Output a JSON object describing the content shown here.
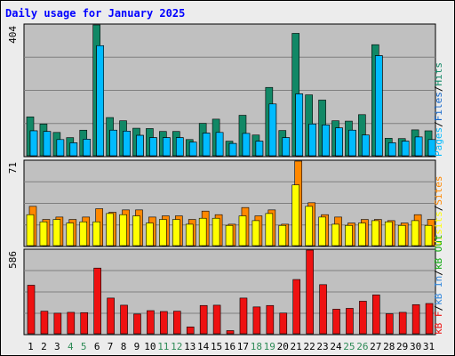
{
  "colors": {
    "frame_bg": "#ececec",
    "panel_bg": "#c0c0c0",
    "grid": "#7f7f7f",
    "title": "#0000ff",
    "pages": "#00bbff",
    "hits": "#118866",
    "files": "#1166cc",
    "visits": "#ffff00",
    "sites": "#ff8800",
    "kb": "#ee1111",
    "kb_in": "#3388dd",
    "kb_out": "#11aa11",
    "weekday": "#000000",
    "weekend": "#2e8b57"
  },
  "legend": {
    "top": [
      {
        "text": "Pages",
        "color": "#00bbff"
      },
      {
        "text": "/",
        "color": "#000000"
      },
      {
        "text": "Files",
        "color": "#1166cc"
      },
      {
        "text": "/",
        "color": "#000000"
      },
      {
        "text": "Hits",
        "color": "#118866"
      }
    ],
    "middle": [
      {
        "text": "Visits",
        "color": "#ffff00"
      },
      {
        "text": "/",
        "color": "#000000"
      },
      {
        "text": "Sites",
        "color": "#ff8800"
      }
    ],
    "bottom": [
      {
        "text": "kB F",
        "color": "#ee1111"
      },
      {
        "text": "/",
        "color": "#000000"
      },
      {
        "text": "kB In",
        "color": "#3388dd"
      },
      {
        "text": "/",
        "color": "#000000"
      },
      {
        "text": "kB Out",
        "color": "#11aa11"
      }
    ]
  },
  "chart_data": {
    "type": "bar",
    "title": "Daily usage for January 2025",
    "categories": [
      "1",
      "2",
      "3",
      "4",
      "5",
      "6",
      "7",
      "8",
      "9",
      "10",
      "11",
      "12",
      "13",
      "14",
      "15",
      "16",
      "17",
      "18",
      "19",
      "20",
      "21",
      "22",
      "23",
      "24",
      "25",
      "26",
      "27",
      "28",
      "29",
      "30",
      "31"
    ],
    "weekend_days": [
      "4",
      "5",
      "11",
      "12",
      "18",
      "19",
      "25",
      "26"
    ],
    "panels": [
      {
        "name": "hits-files-pages",
        "ymax_label": "404",
        "ylim": [
          0,
          404
        ],
        "gridlines": 3,
        "series": [
          {
            "name": "Hits",
            "color": "#118866",
            "values": [
              120,
              98,
              72,
              56,
              79,
              404,
              118,
              108,
              85,
              84,
              75,
              75,
              50,
              100,
              113,
              45,
              125,
              64,
              211,
              78,
              378,
              188,
              172,
              108,
              107,
              127,
              343,
              54,
              53,
              80,
              77
            ]
          },
          {
            "name": "Files",
            "color": "#1166cc",
            "values": [
              77,
              75,
              50,
              40,
              51,
              340,
              79,
              76,
              63,
              56,
              56,
              56,
              42,
              70,
              72,
              38,
              69,
              45,
              160,
              56,
              191,
              98,
              95,
              86,
              79,
              64,
              309,
              40,
              45,
              58,
              50
            ]
          },
          {
            "name": "Pages",
            "color": "#00bbff",
            "values": [
              77,
              75,
              50,
              40,
              51,
              340,
              79,
              76,
              63,
              56,
              56,
              56,
              42,
              70,
              72,
              38,
              69,
              45,
              160,
              56,
              191,
              98,
              95,
              86,
              79,
              64,
              309,
              40,
              45,
              58,
              50
            ]
          }
        ]
      },
      {
        "name": "sites-visits",
        "ymax_label": "71",
        "ylim": [
          0,
          71
        ],
        "gridlines": 3,
        "series": [
          {
            "name": "Sites",
            "color": "#ff8800",
            "values": [
              33,
              22,
              24,
              22,
              24,
              31,
              28,
              30,
              30,
              24,
              25,
              25,
              22,
              29,
              26,
              18,
              32,
              25,
              30,
              18,
              71,
              36,
              26,
              24,
              19,
              22,
              22,
              21,
              19,
              26,
              22
            ]
          },
          {
            "name": "Visits",
            "color": "#ffff00",
            "values": [
              26,
              20,
              22,
              19,
              20,
              20,
              27,
              26,
              25,
              19,
              22,
              22,
              18,
              23,
              23,
              17,
              25,
              21,
              27,
              17,
              51,
              33,
              24,
              18,
              17,
              19,
              21,
              20,
              17,
              21,
              17
            ]
          }
        ]
      },
      {
        "name": "kbytes",
        "ymax_label": "586",
        "ylim": [
          0,
          586
        ],
        "gridlines": 3,
        "series": [
          {
            "name": "kB F",
            "color": "#ee1111",
            "values": [
              340,
              158,
              144,
              150,
              148,
              460,
              250,
              200,
              138,
              162,
              156,
              158,
              48,
              198,
              200,
              22,
              250,
              188,
              198,
              145,
              380,
              586,
              344,
              172,
              178,
              228,
              272,
              140,
              150,
              204,
              212
            ]
          },
          {
            "name": "kB In",
            "color": "#3388dd",
            "values": [
              0,
              0,
              0,
              0,
              0,
              0,
              0,
              0,
              0,
              0,
              0,
              0,
              0,
              0,
              0,
              0,
              0,
              0,
              0,
              0,
              0,
              0,
              0,
              0,
              0,
              0,
              0,
              0,
              0,
              0,
              0
            ]
          },
          {
            "name": "kB Out",
            "color": "#11aa11",
            "values": [
              0,
              0,
              0,
              0,
              0,
              0,
              0,
              0,
              0,
              0,
              0,
              0,
              0,
              0,
              0,
              0,
              0,
              0,
              0,
              0,
              0,
              0,
              0,
              0,
              0,
              0,
              0,
              0,
              0,
              0,
              0
            ]
          }
        ]
      }
    ]
  }
}
